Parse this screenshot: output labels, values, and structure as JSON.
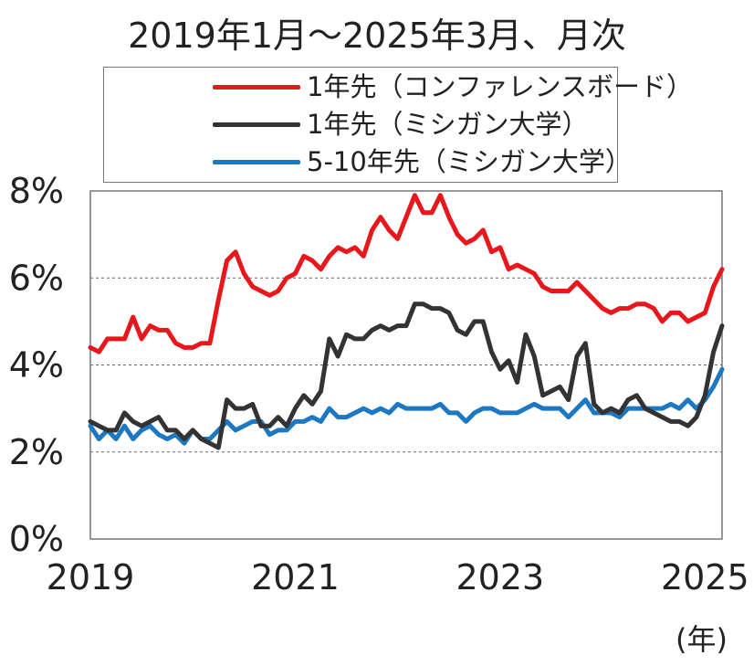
{
  "title": "2019年1月～2025年3月、月次",
  "x_unit_label": "(年)",
  "chart_data": {
    "type": "line",
    "x_start": "2019-01",
    "x_end": "2025-03",
    "x_frequency": "monthly",
    "xticks": [
      "2019",
      "2021",
      "2023",
      "2025"
    ],
    "yticks": [
      "0%",
      "2%",
      "4%",
      "6%",
      "8%"
    ],
    "ylim": [
      0,
      8
    ],
    "grid": "horizontal dashed",
    "legend": "top",
    "series": [
      {
        "name": "1年先（コンファレンスボード）",
        "color": "#e8171b",
        "values": [
          4.4,
          4.3,
          4.6,
          4.6,
          4.6,
          5.1,
          4.6,
          4.9,
          4.8,
          4.8,
          4.5,
          4.4,
          4.4,
          4.5,
          4.5,
          5.5,
          6.4,
          6.6,
          6.1,
          5.8,
          5.7,
          5.6,
          5.7,
          6.0,
          6.1,
          6.5,
          6.4,
          6.2,
          6.5,
          6.7,
          6.6,
          6.7,
          6.5,
          7.1,
          7.4,
          7.1,
          6.9,
          7.4,
          7.9,
          7.5,
          7.5,
          7.9,
          7.4,
          7.0,
          6.8,
          6.9,
          7.1,
          6.6,
          6.7,
          6.2,
          6.3,
          6.2,
          6.1,
          5.8,
          5.7,
          5.7,
          5.7,
          5.9,
          5.7,
          5.5,
          5.3,
          5.2,
          5.3,
          5.3,
          5.4,
          5.4,
          5.3,
          5.0,
          5.2,
          5.2,
          5.0,
          5.1,
          5.2,
          5.8,
          6.2
        ]
      },
      {
        "name": "1年先（ミシガン大学）",
        "color": "#333333",
        "values": [
          2.7,
          2.6,
          2.5,
          2.5,
          2.9,
          2.7,
          2.6,
          2.7,
          2.8,
          2.5,
          2.5,
          2.3,
          2.5,
          2.3,
          2.2,
          2.1,
          3.2,
          3.0,
          3.0,
          3.1,
          2.6,
          2.6,
          2.8,
          2.6,
          3.0,
          3.3,
          3.1,
          3.4,
          4.6,
          4.2,
          4.7,
          4.6,
          4.6,
          4.8,
          4.9,
          4.8,
          4.9,
          4.9,
          5.4,
          5.4,
          5.3,
          5.3,
          5.2,
          4.8,
          4.7,
          5.0,
          5.0,
          4.3,
          3.9,
          4.1,
          3.6,
          4.7,
          4.2,
          3.3,
          3.4,
          3.5,
          3.2,
          4.2,
          4.5,
          3.1,
          2.9,
          3.0,
          2.9,
          3.2,
          3.3,
          3.0,
          2.9,
          2.8,
          2.7,
          2.7,
          2.6,
          2.8,
          3.3,
          4.3,
          4.9
        ]
      },
      {
        "name": "5-10年先（ミシガン大学）",
        "color": "#1d78c3",
        "values": [
          2.6,
          2.3,
          2.5,
          2.3,
          2.6,
          2.3,
          2.5,
          2.6,
          2.4,
          2.3,
          2.4,
          2.2,
          2.5,
          2.3,
          2.3,
          2.5,
          2.7,
          2.5,
          2.6,
          2.7,
          2.7,
          2.4,
          2.5,
          2.5,
          2.7,
          2.7,
          2.8,
          2.7,
          3.0,
          2.8,
          2.8,
          2.9,
          3.0,
          2.9,
          3.0,
          2.9,
          3.1,
          3.0,
          3.0,
          3.0,
          3.0,
          3.1,
          2.9,
          2.9,
          2.7,
          2.9,
          3.0,
          3.0,
          2.9,
          2.9,
          2.9,
          3.0,
          3.1,
          3.0,
          3.0,
          3.0,
          2.8,
          3.0,
          3.2,
          2.9,
          2.9,
          2.9,
          2.8,
          3.0,
          3.0,
          3.0,
          3.0,
          3.0,
          3.1,
          3.0,
          3.2,
          3.0,
          3.2,
          3.5,
          3.9
        ]
      }
    ]
  }
}
